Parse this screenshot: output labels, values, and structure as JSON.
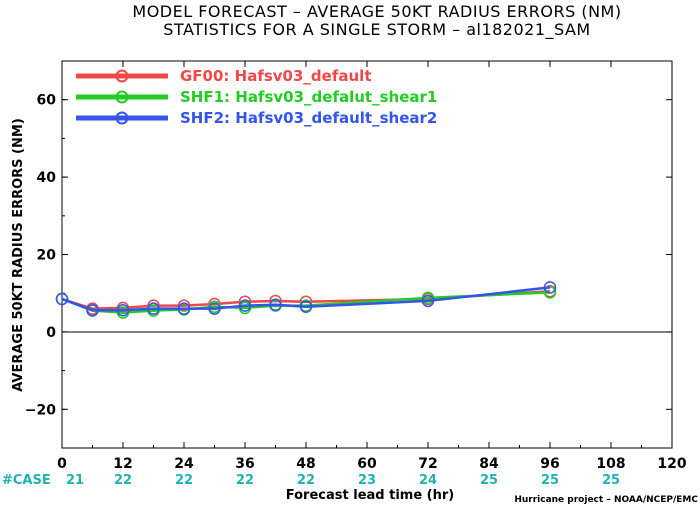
{
  "chart_data": {
    "type": "line",
    "title": "MODEL FORECAST – AVERAGE 50KT RADIUS ERRORS (NM)",
    "subtitle": "STATISTICS FOR A SINGLE STORM – al182021_SAM",
    "xlabel": "Forecast lead time (hr)",
    "ylabel": "AVERAGE 50KT RADIUS ERRORS (NM)",
    "credit": "Hurricane project – NOAA/NCEP/EMC",
    "xlim": [
      0,
      120
    ],
    "ylim": [
      -30,
      70
    ],
    "xticks": [
      "0",
      "12",
      "24",
      "36",
      "48",
      "60",
      "72",
      "84",
      "96",
      "108",
      "120"
    ],
    "yticks": [
      "60",
      "40",
      "20",
      "0",
      "−20"
    ],
    "case_label": "#CASE",
    "cases": [
      {
        "x": 0,
        "n": "21"
      },
      {
        "x": 12,
        "n": "22"
      },
      {
        "x": 24,
        "n": "22"
      },
      {
        "x": 36,
        "n": "22"
      },
      {
        "x": 48,
        "n": "22"
      },
      {
        "x": 60,
        "n": "23"
      },
      {
        "x": 72,
        "n": "24"
      },
      {
        "x": 84,
        "n": "25"
      },
      {
        "x": 96,
        "n": "25"
      },
      {
        "x": 108,
        "n": "25"
      }
    ],
    "legend_position": "top-left",
    "series": [
      {
        "name": "GF00: Hafsv03_default",
        "color": "#f04848",
        "x": [
          0,
          6,
          12,
          18,
          24,
          30,
          36,
          42,
          48,
          72,
          96
        ],
        "values": [
          8.5,
          6.0,
          6.2,
          6.8,
          6.8,
          7.2,
          7.8,
          8.0,
          7.8,
          8.5,
          10.5
        ]
      },
      {
        "name": "SHF1: Hafsv03_defalut_shear1",
        "color": "#22cc22",
        "x": [
          0,
          6,
          12,
          18,
          24,
          30,
          36,
          42,
          48,
          72,
          96
        ],
        "values": [
          8.5,
          5.5,
          5.0,
          5.5,
          5.8,
          6.5,
          6.2,
          6.8,
          6.8,
          8.8,
          10.2
        ]
      },
      {
        "name": "SHF2: Hafsv03_default_shear2",
        "color": "#3355ee",
        "x": [
          0,
          6,
          12,
          18,
          24,
          30,
          36,
          42,
          48,
          72,
          96
        ],
        "values": [
          8.5,
          5.6,
          5.6,
          6.0,
          6.0,
          6.0,
          6.8,
          7.0,
          6.5,
          8.0,
          11.5
        ]
      }
    ]
  }
}
